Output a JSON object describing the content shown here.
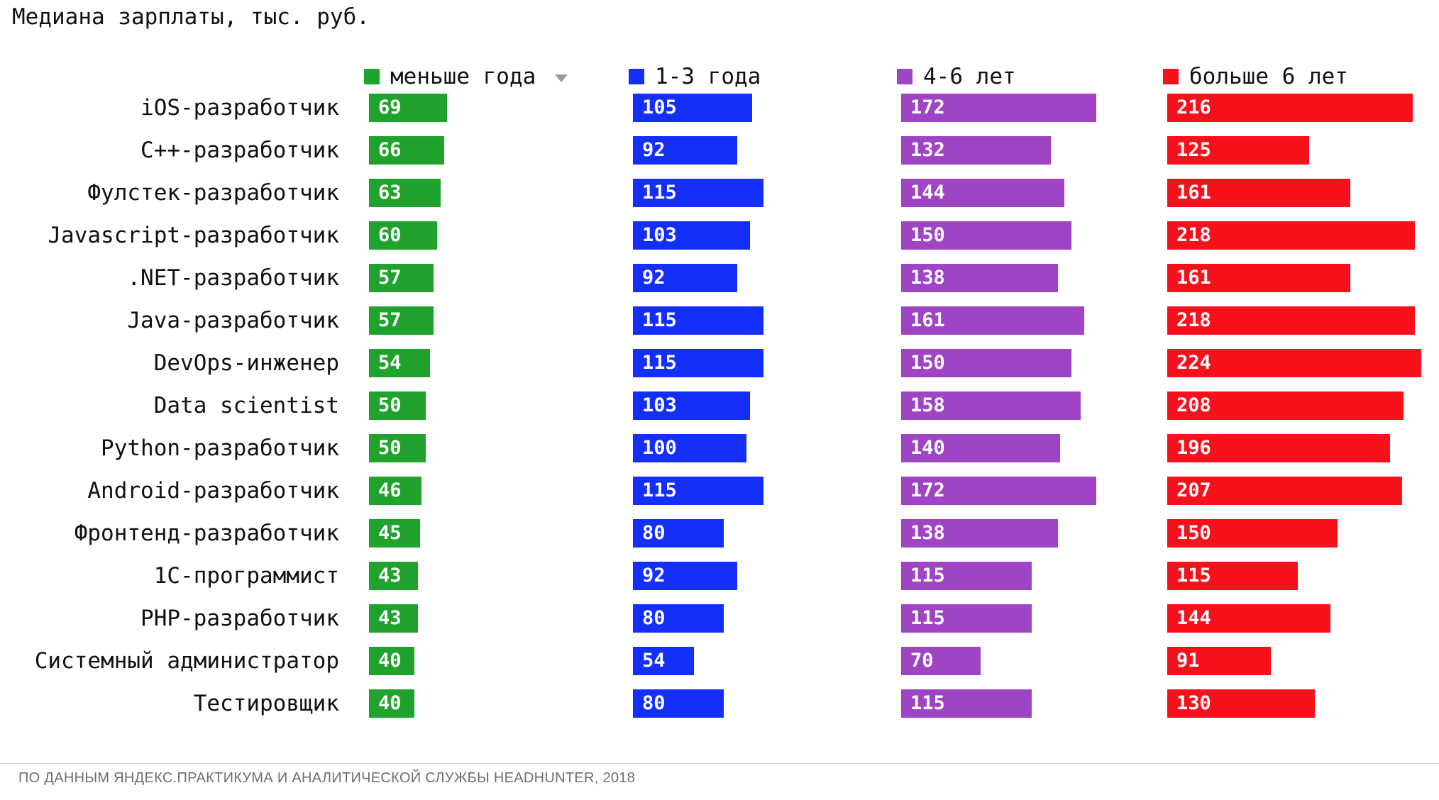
{
  "title": "Медиана зарплаты, тыс. руб.",
  "legend": [
    {
      "label": "меньше года",
      "color": "#1FA32C",
      "sort_arrow": true
    },
    {
      "label": "1-3 года",
      "color": "#142EFB",
      "sort_arrow": false
    },
    {
      "label": "4-6 лет",
      "color": "#A044C6",
      "sort_arrow": false
    },
    {
      "label": "больше 6 лет",
      "color": "#F8101C",
      "sort_arrow": false
    }
  ],
  "footer": "ПО ДАННЫМ ЯНДЕКС.ПРАКТИКУМА И АНАЛИТИЧЕСКОЙ СЛУЖБЫ HEADHUNTER, 2018",
  "chart_data": {
    "type": "bar",
    "orientation": "horizontal",
    "title": "Медиана зарплаты, тыс. руб.",
    "unit": "тыс. руб.",
    "legend_position": "top",
    "value_labels_shown": true,
    "axis_hidden": true,
    "grid": false,
    "value_range": [
      0,
      240
    ],
    "categories": [
      "iOS-разработчик",
      "C++-разработчик",
      "Фулстек-разработчик",
      "Javascript-разработчик",
      ".NET-разработчик",
      "Java-разработчик",
      "DevOps-инженер",
      "Data scientist",
      "Python-разработчик",
      "Android-разработчик",
      "Фронтенд-разработчик",
      "1С-программист",
      "PHP-разработчик",
      "Системный администратор",
      "Тестировщик"
    ],
    "series": [
      {
        "name": "меньше года",
        "color": "#1FA32C",
        "values": [
          69,
          66,
          63,
          60,
          57,
          57,
          54,
          50,
          50,
          46,
          45,
          43,
          43,
          40,
          40
        ]
      },
      {
        "name": "1-3 года",
        "color": "#142EFB",
        "values": [
          105,
          92,
          115,
          103,
          92,
          115,
          115,
          103,
          100,
          115,
          80,
          92,
          80,
          54,
          80
        ]
      },
      {
        "name": "4-6 лет",
        "color": "#A044C6",
        "values": [
          172,
          132,
          144,
          150,
          138,
          161,
          150,
          158,
          140,
          172,
          138,
          115,
          115,
          70,
          115
        ]
      },
      {
        "name": "больше 6 лет",
        "color": "#F8101C",
        "values": [
          216,
          125,
          161,
          218,
          161,
          218,
          224,
          208,
          196,
          207,
          150,
          115,
          144,
          91,
          130
        ]
      }
    ]
  }
}
